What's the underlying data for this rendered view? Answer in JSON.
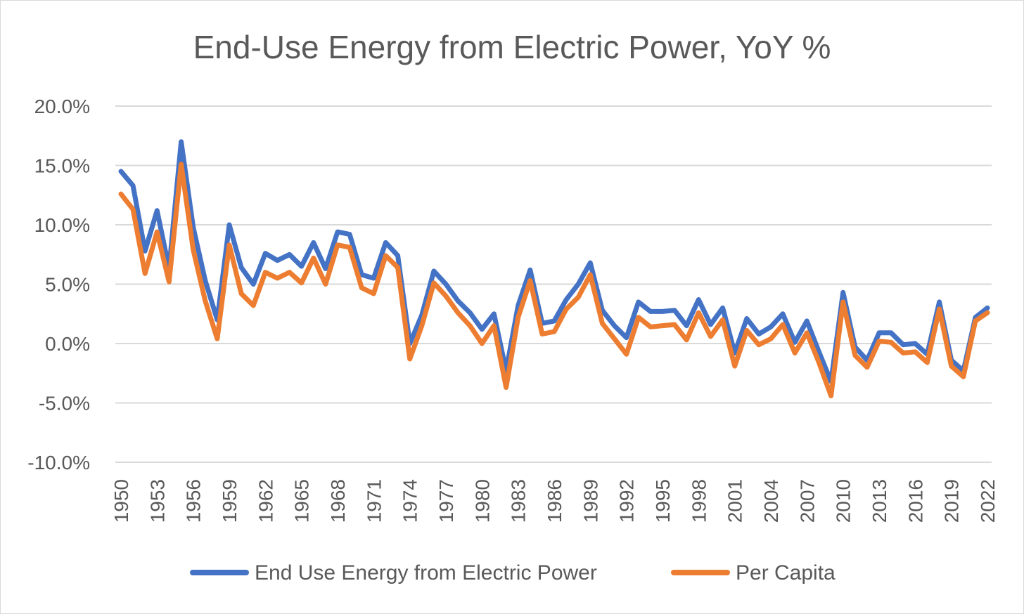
{
  "chart_data": {
    "type": "line",
    "title": "End-Use Energy from Electric Power, YoY %",
    "xlabel": "",
    "ylabel": "",
    "ylim": [
      -10,
      20
    ],
    "yticks": [
      -10,
      -5,
      0,
      5,
      10,
      15,
      20
    ],
    "ytick_labels": [
      "-10.0%",
      "-5.0%",
      "0.0%",
      "5.0%",
      "10.0%",
      "15.0%",
      "20.0%"
    ],
    "xtick_labels": [
      "1950",
      "1953",
      "1956",
      "1959",
      "1962",
      "1965",
      "1968",
      "1971",
      "1974",
      "1977",
      "1980",
      "1983",
      "1986",
      "1989",
      "1992",
      "1995",
      "1998",
      "2001",
      "2004",
      "2007",
      "2010",
      "2013",
      "2016",
      "2019",
      "2022"
    ],
    "x": [
      1950,
      1951,
      1952,
      1953,
      1954,
      1955,
      1956,
      1957,
      1958,
      1959,
      1960,
      1961,
      1962,
      1963,
      1964,
      1965,
      1966,
      1967,
      1968,
      1969,
      1970,
      1971,
      1972,
      1973,
      1974,
      1975,
      1976,
      1977,
      1978,
      1979,
      1980,
      1981,
      1982,
      1983,
      1984,
      1985,
      1986,
      1987,
      1988,
      1989,
      1990,
      1991,
      1992,
      1993,
      1994,
      1995,
      1996,
      1997,
      1998,
      1999,
      2000,
      2001,
      2002,
      2003,
      2004,
      2005,
      2006,
      2007,
      2008,
      2009,
      2010,
      2011,
      2012,
      2013,
      2014,
      2015,
      2016,
      2017,
      2018,
      2019,
      2020,
      2021,
      2022
    ],
    "grid": true,
    "legend_position": "bottom",
    "series": [
      {
        "name": "End Use Energy from Electric Power",
        "color": "#4472c4",
        "values": [
          14.5,
          13.3,
          7.8,
          11.2,
          6.3,
          17.0,
          9.8,
          5.3,
          2.0,
          10.0,
          6.4,
          5.0,
          7.6,
          7.0,
          7.5,
          6.5,
          8.5,
          6.3,
          9.4,
          9.2,
          5.8,
          5.5,
          8.5,
          7.4,
          0.0,
          2.4,
          6.1,
          5.0,
          3.6,
          2.6,
          1.2,
          2.5,
          -2.3,
          3.2,
          6.2,
          1.7,
          1.9,
          3.7,
          5.0,
          6.8,
          2.8,
          1.5,
          0.5,
          3.5,
          2.7,
          2.7,
          2.8,
          1.5,
          3.7,
          1.6,
          3.0,
          -0.8,
          2.1,
          0.8,
          1.4,
          2.5,
          0.1,
          1.9,
          -0.7,
          -3.2,
          4.3,
          -0.3,
          -1.4,
          0.9,
          0.9,
          -0.1,
          0.0,
          -0.9,
          3.5,
          -1.4,
          -2.3,
          2.2,
          3.0
        ]
      },
      {
        "name": "Per Capita",
        "color": "#ed7d31",
        "values": [
          12.6,
          11.3,
          5.9,
          9.4,
          5.2,
          15.1,
          7.9,
          3.6,
          0.4,
          8.3,
          4.2,
          3.2,
          6.0,
          5.5,
          6.0,
          5.1,
          7.2,
          5.0,
          8.3,
          8.1,
          4.7,
          4.2,
          7.4,
          6.4,
          -1.3,
          1.5,
          5.1,
          4.0,
          2.6,
          1.5,
          0.0,
          1.5,
          -3.7,
          2.2,
          5.3,
          0.8,
          1.0,
          2.9,
          3.9,
          5.8,
          1.7,
          0.4,
          -0.9,
          2.2,
          1.4,
          1.5,
          1.6,
          0.3,
          2.6,
          0.6,
          2.0,
          -1.9,
          1.1,
          -0.1,
          0.4,
          1.6,
          -0.8,
          0.9,
          -1.6,
          -4.4,
          3.5,
          -1.0,
          -2.0,
          0.2,
          0.1,
          -0.8,
          -0.7,
          -1.6,
          2.9,
          -1.9,
          -2.8,
          1.9,
          2.6
        ]
      }
    ]
  }
}
